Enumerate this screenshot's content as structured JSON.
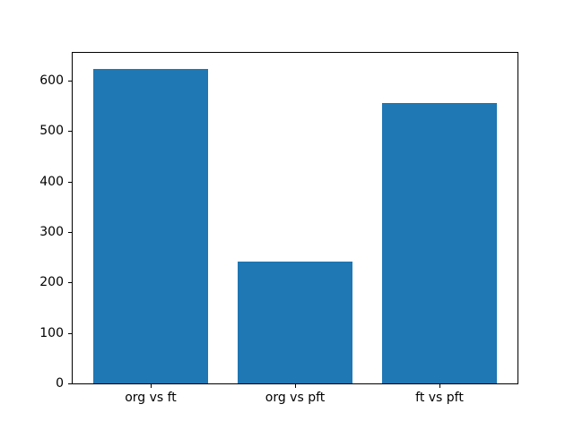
{
  "figure": {
    "background": "#ffffff",
    "spine_color": "#000000",
    "text_color": "#000000"
  },
  "chart_data": {
    "type": "bar",
    "title": "",
    "xlabel": "",
    "ylabel": "",
    "categories": [
      "org vs ft",
      "org vs pft",
      "ft vs pft"
    ],
    "values": [
      624,
      242,
      555
    ],
    "bar_color": "#1f77b4",
    "bar_width": 0.8,
    "xlim": [
      -0.54,
      2.54
    ],
    "ylim": [
      0,
      655
    ],
    "yticks": [
      0,
      100,
      200,
      300,
      400,
      500,
      600
    ],
    "grid": false,
    "legend": false
  }
}
